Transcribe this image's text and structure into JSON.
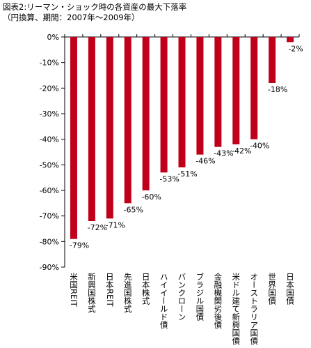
{
  "title": "図表2:リーマン・ショック時の各資産の最大下落率",
  "subtitle": "（円換算、期間：2007年～2009年）",
  "chart_data": {
    "type": "bar",
    "categories": [
      "米国REIT",
      "新興国株式",
      "日本REIT",
      "先進国株式",
      "日本株式",
      "ハイイールド債",
      "バンクローン",
      "ブラジル国債",
      "金融機関劣後債",
      "米ドル建て新興国債",
      "オーストラリア国債",
      "世界国債",
      "日本国債"
    ],
    "values": [
      -79,
      -72,
      -71,
      -65,
      -60,
      -53,
      -51,
      -46,
      -43,
      -42,
      -40,
      -18,
      -2
    ],
    "data_labels": [
      "-79%",
      "-72%",
      "-71%",
      "-65%",
      "-60%",
      "-53%",
      "-51%",
      "-46%",
      "-43%",
      "-42%",
      "-40%",
      "-18%",
      "-2%"
    ],
    "y_ticks": [
      0,
      -10,
      -20,
      -30,
      -40,
      -50,
      -60,
      -70,
      -80,
      -90
    ],
    "y_tick_labels": [
      "0%",
      "-10%",
      "-20%",
      "-30%",
      "-40%",
      "-50%",
      "-60%",
      "-70%",
      "-80%",
      "-90%"
    ],
    "ylim": [
      -90,
      0
    ],
    "bar_color": "#c0001a",
    "grid": false,
    "legend": "none"
  }
}
